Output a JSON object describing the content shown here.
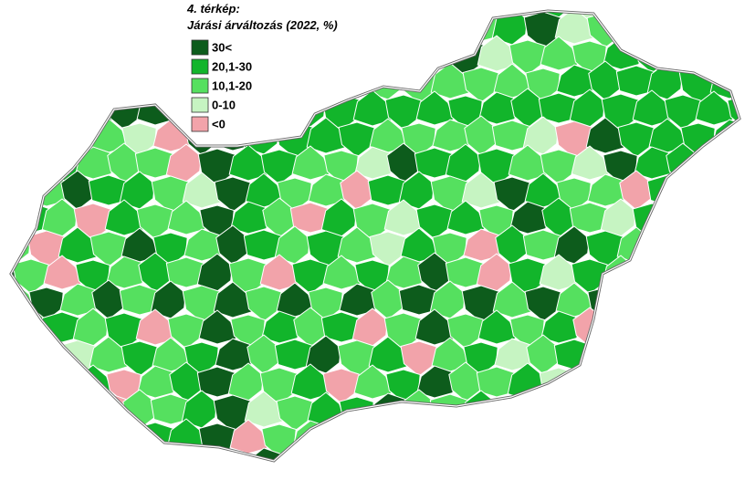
{
  "map": {
    "title": "4. térkép:",
    "subtitle": "Járási árváltozás (2022, %)",
    "legend": [
      {
        "label": "30<",
        "color": "#0d5c1c"
      },
      {
        "label": "20,1-30",
        "color": "#12b52b"
      },
      {
        "label": "10,1-20",
        "color": "#55e05f"
      },
      {
        "label": "0-10",
        "color": "#c6f4c2"
      },
      {
        "label": "<0",
        "color": "#f2a3aa"
      }
    ]
  }
}
